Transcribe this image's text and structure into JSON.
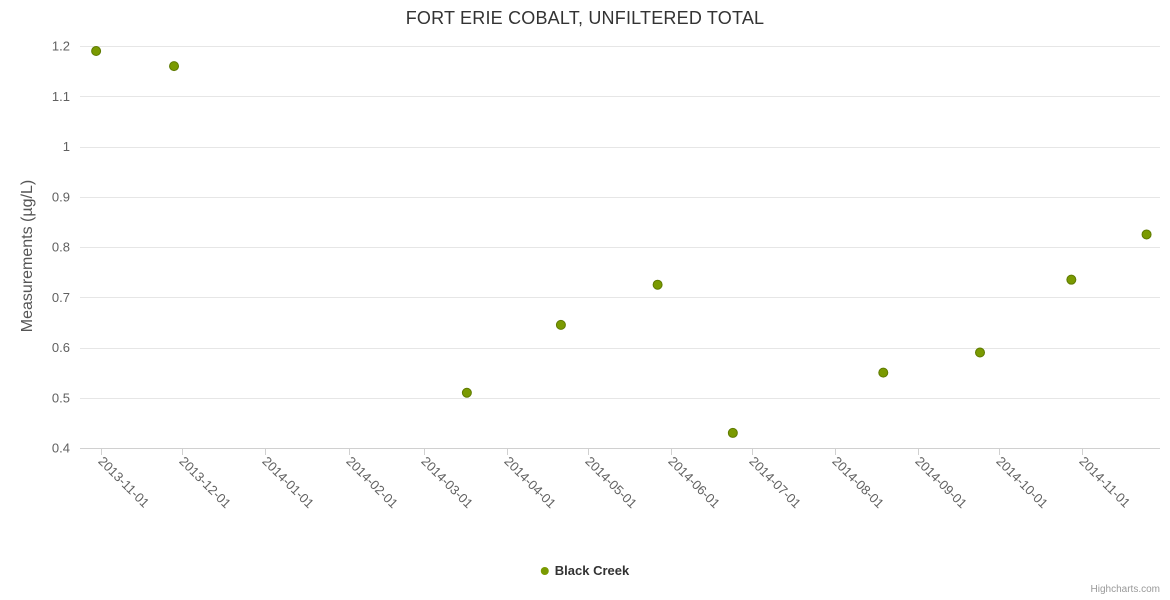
{
  "title": "FORT ERIE COBALT, UNFILTERED TOTAL",
  "credits": "Highcharts.com",
  "legend": {
    "items": [
      {
        "label": "Black Creek",
        "color": "#7a9a01"
      }
    ]
  },
  "colors": {
    "marker": "#7a9a01",
    "marker_stroke": "#5e7a00",
    "gridline": "#e6e6e6",
    "axis_line": "#d0d0d0",
    "tick_label": "#606060"
  },
  "chart_data": {
    "type": "scatter",
    "title": "FORT ERIE COBALT, UNFILTERED TOTAL",
    "xlabel": "",
    "ylabel": "Measurements (µg/L)",
    "ylim": [
      0.4,
      1.2
    ],
    "yticks": [
      0.4,
      0.5,
      0.6,
      0.7,
      0.8,
      0.9,
      1,
      1.1,
      1.2
    ],
    "ytick_labels": [
      "0.4",
      "0.5",
      "0.6",
      "0.7",
      "0.8",
      "0.9",
      "1",
      "1.1",
      "1.2"
    ],
    "xticks": [
      "2013-11-01",
      "2013-12-01",
      "2014-01-01",
      "2014-02-01",
      "2014-03-01",
      "2014-04-01",
      "2014-05-01",
      "2014-06-01",
      "2014-07-01",
      "2014-08-01",
      "2014-09-01",
      "2014-10-01",
      "2014-11-01"
    ],
    "x_range": [
      "2013-10-24",
      "2014-11-30"
    ],
    "grid": true,
    "legend_position": "bottom-center",
    "series": [
      {
        "name": "Black Creek",
        "color": "#7a9a01",
        "points": [
          {
            "x": "2013-10-30",
            "y": 1.19
          },
          {
            "x": "2013-11-28",
            "y": 1.16
          },
          {
            "x": "2014-03-17",
            "y": 0.51
          },
          {
            "x": "2014-04-21",
            "y": 0.645
          },
          {
            "x": "2014-05-27",
            "y": 0.725
          },
          {
            "x": "2014-06-24",
            "y": 0.43
          },
          {
            "x": "2014-08-19",
            "y": 0.55
          },
          {
            "x": "2014-09-24",
            "y": 0.59
          },
          {
            "x": "2014-10-28",
            "y": 0.735
          },
          {
            "x": "2014-11-25",
            "y": 0.825
          }
        ]
      }
    ]
  }
}
